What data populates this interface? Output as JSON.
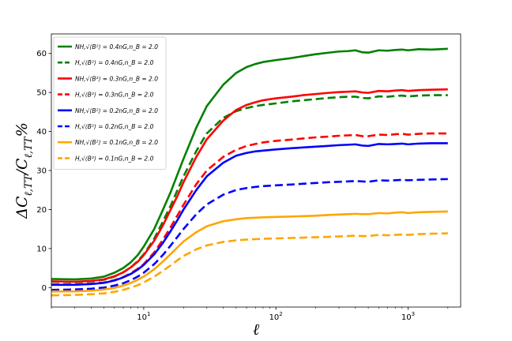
{
  "chart_data": {
    "type": "line",
    "title": "",
    "xlabel": "ℓ",
    "ylabel": "ΔC_{ℓ,TT}/C_{ℓ,TT}%",
    "xscale": "log",
    "xlim": [
      2,
      2500
    ],
    "ylim": [
      -5,
      65
    ],
    "xticks": [
      {
        "value": 10,
        "label": "10",
        "sup": "1"
      },
      {
        "value": 100,
        "label": "10",
        "sup": "2"
      },
      {
        "value": 1000,
        "label": "10",
        "sup": "3"
      }
    ],
    "yticks": [
      0,
      10,
      20,
      30,
      40,
      50,
      60
    ],
    "grid": false,
    "legend_position": "top-left",
    "series": [
      {
        "name": "NH,√⟨B²⟩ = 0.4nG,n_B = 2.0",
        "color": "#008000",
        "dash": "solid",
        "x": [
          2,
          3,
          4,
          5,
          6,
          7,
          8,
          9,
          10,
          12,
          14,
          16,
          18,
          20,
          25,
          30,
          40,
          50,
          60,
          70,
          80,
          100,
          130,
          160,
          200,
          250,
          300,
          350,
          400,
          450,
          500,
          600,
          700,
          800,
          900,
          1000,
          1200,
          1500,
          2000
        ],
        "y": [
          2.2,
          2.1,
          2.3,
          2.8,
          3.8,
          5.0,
          6.5,
          8.3,
          10.5,
          15.0,
          20.0,
          24.5,
          29.0,
          33.0,
          41.0,
          46.5,
          52.0,
          55.0,
          56.5,
          57.3,
          57.8,
          58.3,
          58.8,
          59.3,
          59.8,
          60.2,
          60.5,
          60.6,
          60.8,
          60.3,
          60.2,
          60.8,
          60.7,
          60.9,
          61.0,
          60.8,
          61.1,
          61.0,
          61.2
        ]
      },
      {
        "name": "H,√⟨B²⟩ = 0.4nG,n_B = 2.0",
        "color": "#008000",
        "dash": "dashed",
        "x": [
          2,
          3,
          4,
          5,
          6,
          7,
          8,
          9,
          10,
          12,
          14,
          16,
          18,
          20,
          25,
          30,
          40,
          50,
          60,
          70,
          80,
          100,
          130,
          160,
          200,
          250,
          300,
          350,
          400,
          450,
          500,
          600,
          700,
          800,
          900,
          1000,
          1200,
          1500,
          2000
        ],
        "y": [
          1.5,
          1.4,
          1.6,
          2.0,
          2.8,
          3.9,
          5.2,
          6.8,
          8.5,
          12.5,
          17.0,
          21.0,
          25.0,
          28.5,
          35.0,
          39.5,
          43.5,
          45.2,
          46.0,
          46.5,
          46.8,
          47.2,
          47.7,
          48.0,
          48.3,
          48.6,
          48.8,
          48.9,
          48.9,
          48.6,
          48.5,
          49.0,
          48.9,
          49.1,
          49.2,
          49.0,
          49.2,
          49.3,
          49.3
        ]
      },
      {
        "name": "NH,√⟨B²⟩ = 0.3nG,n_B = 2.0",
        "color": "#ff0000",
        "dash": "solid",
        "x": [
          2,
          3,
          4,
          5,
          6,
          7,
          8,
          9,
          10,
          12,
          14,
          16,
          18,
          20,
          25,
          30,
          40,
          50,
          60,
          70,
          80,
          100,
          130,
          160,
          200,
          250,
          300,
          350,
          400,
          450,
          500,
          600,
          700,
          800,
          900,
          1000,
          1200,
          1500,
          2000
        ],
        "y": [
          1.6,
          1.5,
          1.7,
          2.1,
          2.9,
          3.9,
          5.2,
          6.6,
          8.3,
          12.0,
          16.0,
          20.0,
          23.5,
          27.0,
          33.5,
          38.0,
          42.8,
          45.5,
          46.8,
          47.5,
          48.0,
          48.5,
          48.9,
          49.3,
          49.6,
          49.9,
          50.1,
          50.2,
          50.3,
          50.0,
          49.9,
          50.4,
          50.3,
          50.5,
          50.6,
          50.4,
          50.6,
          50.7,
          50.8
        ]
      },
      {
        "name": "H,√⟨B²⟩ = 0.3nG,n_B = 2.0",
        "color": "#ff0000",
        "dash": "dashed",
        "x": [
          2,
          3,
          4,
          5,
          6,
          7,
          8,
          9,
          10,
          12,
          14,
          16,
          18,
          20,
          25,
          30,
          40,
          50,
          60,
          70,
          80,
          100,
          130,
          160,
          200,
          250,
          300,
          350,
          400,
          450,
          500,
          600,
          700,
          800,
          900,
          1000,
          1200,
          1500,
          2000
        ],
        "y": [
          0.8,
          0.8,
          1.0,
          1.3,
          1.9,
          2.7,
          3.7,
          4.8,
          6.0,
          9.0,
          12.3,
          15.5,
          18.5,
          21.2,
          26.5,
          30.0,
          33.5,
          35.3,
          36.3,
          36.8,
          37.2,
          37.6,
          37.9,
          38.2,
          38.5,
          38.7,
          38.9,
          39.0,
          39.1,
          38.8,
          38.8,
          39.2,
          39.1,
          39.3,
          39.4,
          39.2,
          39.4,
          39.5,
          39.5
        ]
      },
      {
        "name": "NH,√⟨B²⟩ = 0.2nG,n_B = 2.0",
        "color": "#0000ff",
        "dash": "solid",
        "x": [
          2,
          3,
          4,
          5,
          6,
          7,
          8,
          9,
          10,
          12,
          14,
          16,
          18,
          20,
          25,
          30,
          40,
          50,
          60,
          70,
          80,
          100,
          130,
          160,
          200,
          250,
          300,
          350,
          400,
          450,
          500,
          600,
          700,
          800,
          900,
          1000,
          1200,
          1500,
          2000
        ],
        "y": [
          0.7,
          0.7,
          0.9,
          1.2,
          1.8,
          2.6,
          3.5,
          4.6,
          5.8,
          8.5,
          11.5,
          14.5,
          17.3,
          20.0,
          25.0,
          28.5,
          32.0,
          33.8,
          34.5,
          34.9,
          35.1,
          35.4,
          35.7,
          35.9,
          36.1,
          36.3,
          36.5,
          36.6,
          36.7,
          36.4,
          36.3,
          36.8,
          36.7,
          36.8,
          36.9,
          36.7,
          36.9,
          37.0,
          37.0
        ]
      },
      {
        "name": "H,√⟨B²⟩ = 0.2nG,n_B = 2.0",
        "color": "#0000ff",
        "dash": "dashed",
        "x": [
          2,
          3,
          4,
          5,
          6,
          7,
          8,
          9,
          10,
          12,
          14,
          16,
          18,
          20,
          25,
          30,
          40,
          50,
          60,
          70,
          80,
          100,
          130,
          160,
          200,
          250,
          300,
          350,
          400,
          450,
          500,
          600,
          700,
          800,
          900,
          1000,
          1200,
          1500,
          2000
        ],
        "y": [
          -0.6,
          -0.5,
          -0.3,
          0.0,
          0.5,
          1.1,
          1.9,
          2.8,
          3.8,
          6.0,
          8.4,
          10.8,
          13.0,
          15.0,
          18.8,
          21.3,
          23.8,
          25.0,
          25.5,
          25.8,
          26.0,
          26.2,
          26.4,
          26.6,
          26.8,
          27.0,
          27.1,
          27.2,
          27.3,
          27.2,
          27.1,
          27.5,
          27.4,
          27.5,
          27.6,
          27.5,
          27.6,
          27.7,
          27.8
        ]
      },
      {
        "name": "NH,√⟨B²⟩ = 0.1nG,n_B = 2.0",
        "color": "#ffa500",
        "dash": "solid",
        "x": [
          2,
          3,
          4,
          5,
          6,
          7,
          8,
          9,
          10,
          12,
          14,
          16,
          18,
          20,
          25,
          30,
          40,
          50,
          60,
          70,
          80,
          100,
          130,
          160,
          200,
          250,
          300,
          350,
          400,
          450,
          500,
          600,
          700,
          800,
          900,
          1000,
          1200,
          1500,
          2000
        ],
        "y": [
          -1.0,
          -1.0,
          -0.8,
          -0.5,
          -0.1,
          0.5,
          1.2,
          2.0,
          2.8,
          4.7,
          6.7,
          8.6,
          10.3,
          11.8,
          14.2,
          15.7,
          17.0,
          17.5,
          17.8,
          17.9,
          18.0,
          18.1,
          18.2,
          18.3,
          18.4,
          18.6,
          18.7,
          18.8,
          18.9,
          18.8,
          18.8,
          19.1,
          19.0,
          19.2,
          19.3,
          19.1,
          19.3,
          19.4,
          19.5
        ]
      },
      {
        "name": "H,√⟨B²⟩ = 0.1nG,n_B = 2.0",
        "color": "#ffa500",
        "dash": "dashed",
        "x": [
          2,
          3,
          4,
          5,
          6,
          7,
          8,
          9,
          10,
          12,
          14,
          16,
          18,
          20,
          25,
          30,
          40,
          50,
          60,
          70,
          80,
          100,
          130,
          160,
          200,
          250,
          300,
          350,
          400,
          450,
          500,
          600,
          700,
          800,
          900,
          1000,
          1200,
          1500,
          2000
        ],
        "y": [
          -2.0,
          -1.9,
          -1.7,
          -1.5,
          -1.1,
          -0.6,
          0.0,
          0.6,
          1.3,
          2.8,
          4.3,
          5.7,
          7.0,
          8.1,
          9.8,
          10.8,
          11.7,
          12.1,
          12.3,
          12.4,
          12.5,
          12.6,
          12.7,
          12.8,
          12.9,
          13.0,
          13.1,
          13.2,
          13.3,
          13.2,
          13.2,
          13.5,
          13.4,
          13.5,
          13.6,
          13.5,
          13.7,
          13.8,
          13.9
        ]
      }
    ]
  }
}
